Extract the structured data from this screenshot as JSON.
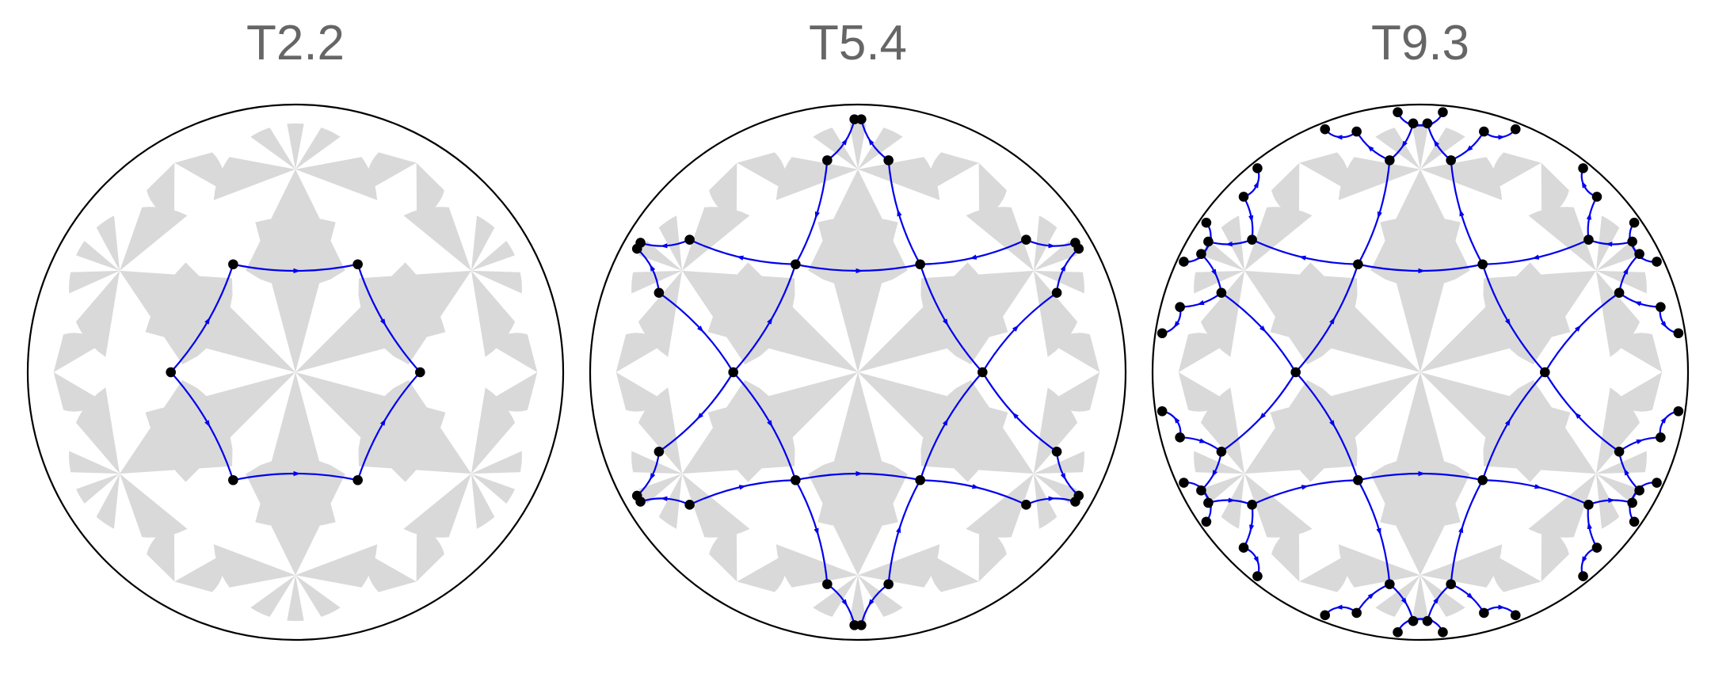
{
  "panels": [
    {
      "title": "T2.2",
      "rings": 1
    },
    {
      "title": "T5.4",
      "rings": 2
    },
    {
      "title": "T9.3",
      "rings": 3
    }
  ],
  "colors": {
    "boundary": "#000000",
    "tiling_fill": "#d9d9d9",
    "edge": "#0000ee",
    "vertex": "#000000",
    "title": "#666666"
  }
}
